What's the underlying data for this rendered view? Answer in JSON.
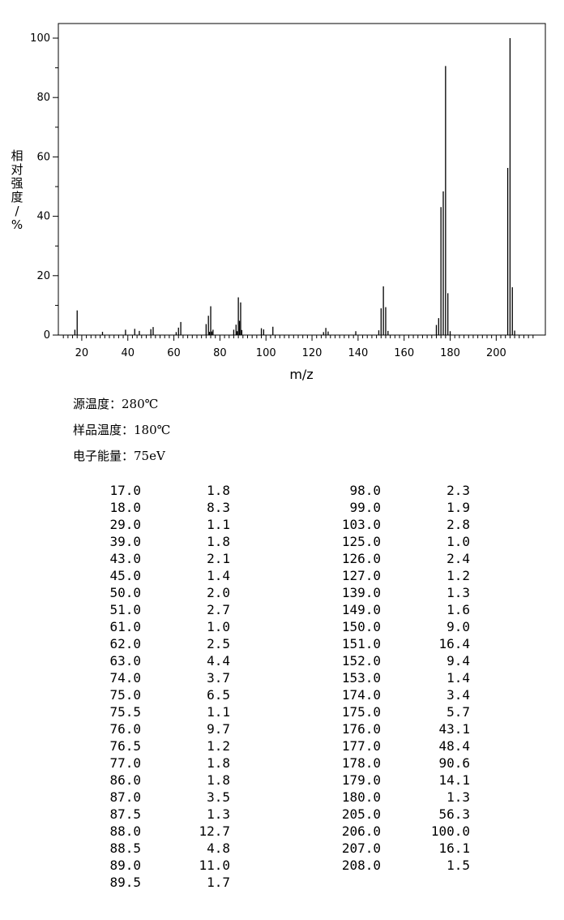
{
  "chart_data": {
    "type": "bar",
    "title": "",
    "xlabel": "m/z",
    "ylabel": "相对强度/%",
    "xlim": [
      10,
      218
    ],
    "ylim": [
      0,
      105
    ],
    "x_ticks": [
      20,
      40,
      60,
      80,
      100,
      120,
      140,
      160,
      180,
      200
    ],
    "y_ticks": [
      0,
      20,
      40,
      60,
      80,
      100
    ],
    "grid": false,
    "peaks": [
      {
        "mz": 17.0,
        "intensity": 1.8
      },
      {
        "mz": 18.0,
        "intensity": 8.3
      },
      {
        "mz": 29.0,
        "intensity": 1.1
      },
      {
        "mz": 39.0,
        "intensity": 1.8
      },
      {
        "mz": 43.0,
        "intensity": 2.1
      },
      {
        "mz": 45.0,
        "intensity": 1.4
      },
      {
        "mz": 50.0,
        "intensity": 2.0
      },
      {
        "mz": 51.0,
        "intensity": 2.7
      },
      {
        "mz": 61.0,
        "intensity": 1.0
      },
      {
        "mz": 62.0,
        "intensity": 2.5
      },
      {
        "mz": 63.0,
        "intensity": 4.4
      },
      {
        "mz": 74.0,
        "intensity": 3.7
      },
      {
        "mz": 75.0,
        "intensity": 6.5
      },
      {
        "mz": 75.5,
        "intensity": 1.1
      },
      {
        "mz": 76.0,
        "intensity": 9.7
      },
      {
        "mz": 76.5,
        "intensity": 1.2
      },
      {
        "mz": 77.0,
        "intensity": 1.8
      },
      {
        "mz": 86.0,
        "intensity": 1.8
      },
      {
        "mz": 87.0,
        "intensity": 3.5
      },
      {
        "mz": 87.5,
        "intensity": 1.3
      },
      {
        "mz": 88.0,
        "intensity": 12.7
      },
      {
        "mz": 88.5,
        "intensity": 4.8
      },
      {
        "mz": 89.0,
        "intensity": 11.0
      },
      {
        "mz": 89.5,
        "intensity": 1.7
      },
      {
        "mz": 98.0,
        "intensity": 2.3
      },
      {
        "mz": 99.0,
        "intensity": 1.9
      },
      {
        "mz": 103.0,
        "intensity": 2.8
      },
      {
        "mz": 125.0,
        "intensity": 1.0
      },
      {
        "mz": 126.0,
        "intensity": 2.4
      },
      {
        "mz": 127.0,
        "intensity": 1.2
      },
      {
        "mz": 139.0,
        "intensity": 1.3
      },
      {
        "mz": 149.0,
        "intensity": 1.6
      },
      {
        "mz": 150.0,
        "intensity": 9.0
      },
      {
        "mz": 151.0,
        "intensity": 16.4
      },
      {
        "mz": 152.0,
        "intensity": 9.4
      },
      {
        "mz": 153.0,
        "intensity": 1.4
      },
      {
        "mz": 174.0,
        "intensity": 3.4
      },
      {
        "mz": 175.0,
        "intensity": 5.7
      },
      {
        "mz": 176.0,
        "intensity": 43.1
      },
      {
        "mz": 177.0,
        "intensity": 48.4
      },
      {
        "mz": 178.0,
        "intensity": 90.6
      },
      {
        "mz": 179.0,
        "intensity": 14.1
      },
      {
        "mz": 180.0,
        "intensity": 1.3
      },
      {
        "mz": 205.0,
        "intensity": 56.3
      },
      {
        "mz": 206.0,
        "intensity": 100.0
      },
      {
        "mz": 207.0,
        "intensity": 16.1
      },
      {
        "mz": 208.0,
        "intensity": 1.5
      }
    ]
  },
  "conditions": [
    {
      "label": "源温度：",
      "value": "280℃"
    },
    {
      "label": "样品温度：",
      "value": "180℃"
    },
    {
      "label": "电子能量：",
      "value": "75eV"
    }
  ],
  "table_left": [
    {
      "mz": "17.0",
      "intensity": "1.8"
    },
    {
      "mz": "18.0",
      "intensity": "8.3"
    },
    {
      "mz": "29.0",
      "intensity": "1.1"
    },
    {
      "mz": "39.0",
      "intensity": "1.8"
    },
    {
      "mz": "43.0",
      "intensity": "2.1"
    },
    {
      "mz": "45.0",
      "intensity": "1.4"
    },
    {
      "mz": "50.0",
      "intensity": "2.0"
    },
    {
      "mz": "51.0",
      "intensity": "2.7"
    },
    {
      "mz": "61.0",
      "intensity": "1.0"
    },
    {
      "mz": "62.0",
      "intensity": "2.5"
    },
    {
      "mz": "63.0",
      "intensity": "4.4"
    },
    {
      "mz": "74.0",
      "intensity": "3.7"
    },
    {
      "mz": "75.0",
      "intensity": "6.5"
    },
    {
      "mz": "75.5",
      "intensity": "1.1"
    },
    {
      "mz": "76.0",
      "intensity": "9.7"
    },
    {
      "mz": "76.5",
      "intensity": "1.2"
    },
    {
      "mz": "77.0",
      "intensity": "1.8"
    },
    {
      "mz": "86.0",
      "intensity": "1.8"
    },
    {
      "mz": "87.0",
      "intensity": "3.5"
    },
    {
      "mz": "87.5",
      "intensity": "1.3"
    },
    {
      "mz": "88.0",
      "intensity": "12.7"
    },
    {
      "mz": "88.5",
      "intensity": "4.8"
    },
    {
      "mz": "89.0",
      "intensity": "11.0"
    },
    {
      "mz": "89.5",
      "intensity": "1.7"
    }
  ],
  "table_right": [
    {
      "mz": "98.0",
      "intensity": "2.3"
    },
    {
      "mz": "99.0",
      "intensity": "1.9"
    },
    {
      "mz": "103.0",
      "intensity": "2.8"
    },
    {
      "mz": "125.0",
      "intensity": "1.0"
    },
    {
      "mz": "126.0",
      "intensity": "2.4"
    },
    {
      "mz": "127.0",
      "intensity": "1.2"
    },
    {
      "mz": "139.0",
      "intensity": "1.3"
    },
    {
      "mz": "149.0",
      "intensity": "1.6"
    },
    {
      "mz": "150.0",
      "intensity": "9.0"
    },
    {
      "mz": "151.0",
      "intensity": "16.4"
    },
    {
      "mz": "152.0",
      "intensity": "9.4"
    },
    {
      "mz": "153.0",
      "intensity": "1.4"
    },
    {
      "mz": "174.0",
      "intensity": "3.4"
    },
    {
      "mz": "175.0",
      "intensity": "5.7"
    },
    {
      "mz": "176.0",
      "intensity": "43.1"
    },
    {
      "mz": "177.0",
      "intensity": "48.4"
    },
    {
      "mz": "178.0",
      "intensity": "90.6"
    },
    {
      "mz": "179.0",
      "intensity": "14.1"
    },
    {
      "mz": "180.0",
      "intensity": "1.3"
    },
    {
      "mz": "205.0",
      "intensity": "56.3"
    },
    {
      "mz": "206.0",
      "intensity": "100.0"
    },
    {
      "mz": "207.0",
      "intensity": "16.1"
    },
    {
      "mz": "208.0",
      "intensity": "1.5"
    }
  ]
}
